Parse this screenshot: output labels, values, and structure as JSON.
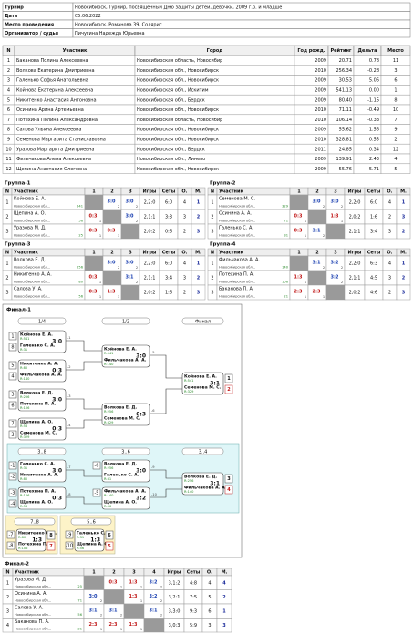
{
  "header": {
    "rows": [
      [
        "Турнир",
        "Новосибирск, Турнир, посвященный Дню защиты детей, девочки, 2009 г.р. и младше"
      ],
      [
        "Дата",
        "05.06.2022"
      ],
      [
        "Место проведения",
        "Новосибирск, Романова 39, Солярис"
      ],
      [
        "Организатор / судья",
        "Пичугина Надежда Юрьевна"
      ]
    ]
  },
  "players": {
    "columns": [
      "N",
      "Участник",
      "Город",
      "Год рожд.",
      "Рейтинг",
      "Дельта",
      "Место"
    ],
    "rows": [
      [
        "1",
        "Баканова Полина Алексеевна",
        "Новосибирская область, Новосибир",
        "2009",
        "20.71",
        "0.78",
        "11"
      ],
      [
        "2",
        "Волкова Екатерина Дмитриевна",
        "Новосибирская обл., Новосибирск",
        "2010",
        "256.34",
        "-0.28",
        "3"
      ],
      [
        "3",
        "Галенько Софья Анатольевна",
        "Новосибирская обл., Новосибирск",
        "2009",
        "30.53",
        "5.06",
        "6"
      ],
      [
        "4",
        "Койнова Екатерина Алексеевна",
        "Новосибирская обл., Искитим",
        "2009",
        "541.13",
        "0.00",
        "1"
      ],
      [
        "5",
        "Никитенко Анастасия Антоновна",
        "Новосибирская обл., Бердск",
        "2009",
        "80.40",
        "-1.15",
        "8"
      ],
      [
        "6",
        "Осинина Арина Артемьевна",
        "Новосибирская обл., Новосибирск",
        "2010",
        "71.11",
        "-0.49",
        "10"
      ],
      [
        "7",
        "Потехина Полина Александровна",
        "Новосибирская область, Новосибир",
        "2010",
        "106.14",
        "-0.33",
        "7"
      ],
      [
        "8",
        "Салова Ульяна Алексеевна",
        "Новосибирская обл., Новосибирск",
        "2009",
        "55.62",
        "1.56",
        "9"
      ],
      [
        "9",
        "Семенова Маргарита Станиславовна",
        "Новосибирская обл., Новосибирск",
        "2010",
        "328.81",
        "0.55",
        "2"
      ],
      [
        "10",
        "Уразова Маргарита Дмитриевна",
        "Новосибирская обл., Бердск",
        "2011",
        "24.85",
        "0.34",
        "12"
      ],
      [
        "11",
        "Фильчакова Алена Алексеевна",
        "Новосибирская обл., Линево",
        "2009",
        "139.91",
        "2.43",
        "4"
      ],
      [
        "12",
        "Щепина Анастасия Олеговна",
        "Новосибирская обл., Новосибирск",
        "2009",
        "55.76",
        "5.71",
        "5"
      ]
    ]
  },
  "groups": [
    {
      "title": "Группа-1",
      "columns": [
        "N",
        "Участник",
        "1",
        "2",
        "3",
        "Игры",
        "Сеты",
        "О.",
        "М."
      ],
      "rows": [
        {
          "n": "1",
          "name": "Койнова Е. А.",
          "city": "Новосибирская обл...",
          "rating": "541",
          "cells": [
            null,
            {
              "score": "3:0",
              "pts": "2"
            },
            {
              "score": "3:0",
              "pts": "2"
            }
          ],
          "games": "2,2:0",
          "sets": "6:0",
          "points": "4",
          "place": "1"
        },
        {
          "n": "2",
          "name": "Щепина А. О.",
          "city": "Новосибирская обл...",
          "rating": "56",
          "cells": [
            {
              "score": "0:3",
              "pts": "1"
            },
            null,
            {
              "score": "3:0",
              "pts": "2"
            }
          ],
          "games": "2,1:1",
          "sets": "3:3",
          "points": "3",
          "place": "2"
        },
        {
          "n": "3",
          "name": "Уразова М. Д.",
          "city": "Новосибирская обл...",
          "rating": "25",
          "cells": [
            {
              "score": "0:3",
              "pts": "1"
            },
            {
              "score": "0:3",
              "pts": "1"
            },
            null
          ],
          "games": "2,0:2",
          "sets": "0:6",
          "points": "2",
          "place": "3"
        }
      ]
    },
    {
      "title": "Группа-2",
      "columns": [
        "N",
        "Участник",
        "1",
        "2",
        "3",
        "Игры",
        "Сеты",
        "О.",
        "М."
      ],
      "rows": [
        {
          "n": "1",
          "name": "Семенова М. С.",
          "city": "Новосибирская обл...",
          "rating": "329",
          "cells": [
            null,
            {
              "score": "3:0",
              "pts": "2"
            },
            {
              "score": "3:0",
              "pts": "2"
            }
          ],
          "games": "2,2:0",
          "sets": "6:0",
          "points": "4",
          "place": "1"
        },
        {
          "n": "2",
          "name": "Осинина А. А.",
          "city": "Новосибирская обл...",
          "rating": "71",
          "cells": [
            {
              "score": "0:3",
              "pts": "1"
            },
            null,
            {
              "score": "1:3",
              "pts": "1"
            }
          ],
          "games": "2,0:2",
          "sets": "1:6",
          "points": "2",
          "place": "3"
        },
        {
          "n": "3",
          "name": "Галенько С. А.",
          "city": "Новосибирская обл...",
          "rating": "31",
          "cells": [
            {
              "score": "0:3",
              "pts": "1"
            },
            {
              "score": "3:1",
              "pts": "2"
            },
            null
          ],
          "games": "2,1:1",
          "sets": "3:4",
          "points": "3",
          "place": "2"
        }
      ]
    },
    {
      "title": "Группа-3",
      "columns": [
        "N",
        "Участник",
        "1",
        "2",
        "3",
        "Игры",
        "Сеты",
        "О.",
        "М."
      ],
      "rows": [
        {
          "n": "1",
          "name": "Волкова Е. Д.",
          "city": "Новосибирская обл...",
          "rating": "256",
          "cells": [
            null,
            {
              "score": "3:0",
              "pts": "2"
            },
            {
              "score": "3:0",
              "pts": "2"
            }
          ],
          "games": "2,2:0",
          "sets": "6:0",
          "points": "4",
          "place": "1"
        },
        {
          "n": "2",
          "name": "Никитенко А. А.",
          "city": "Новосибирская обл...",
          "rating": "80",
          "cells": [
            {
              "score": "0:3",
              "pts": "1"
            },
            null,
            {
              "score": "3:1",
              "pts": "2"
            }
          ],
          "games": "2,1:1",
          "sets": "3:4",
          "points": "3",
          "place": "2"
        },
        {
          "n": "3",
          "name": "Салова У. А.",
          "city": "Новосибирская обл...",
          "rating": "56",
          "cells": [
            {
              "score": "0:3",
              "pts": "1"
            },
            {
              "score": "1:3",
              "pts": "1"
            },
            null
          ],
          "games": "2,0:2",
          "sets": "1:6",
          "points": "2",
          "place": "3"
        }
      ]
    },
    {
      "title": "Группа-4",
      "columns": [
        "N",
        "Участник",
        "1",
        "2",
        "3",
        "Игры",
        "Сеты",
        "О.",
        "М."
      ],
      "rows": [
        {
          "n": "1",
          "name": "Фильчакова А. А.",
          "city": "Новосибирская обл...",
          "rating": "140",
          "cells": [
            null,
            {
              "score": "3:1",
              "pts": "2"
            },
            {
              "score": "3:2",
              "pts": "2"
            }
          ],
          "games": "2,2:0",
          "sets": "6:3",
          "points": "4",
          "place": "1"
        },
        {
          "n": "2",
          "name": "Потехина П. А.",
          "city": "Новосибирская обл...",
          "rating": "106",
          "cells": [
            {
              "score": "1:3",
              "pts": "1"
            },
            null,
            {
              "score": "3:2",
              "pts": "2"
            }
          ],
          "games": "2,1:1",
          "sets": "4:5",
          "points": "3",
          "place": "2"
        },
        {
          "n": "3",
          "name": "Баканова П. А.",
          "city": "Новосибирская обл...",
          "rating": "21",
          "cells": [
            {
              "score": "2:3",
              "pts": "1"
            },
            {
              "score": "2:3",
              "pts": "1"
            },
            null
          ],
          "games": "2,0:2",
          "sets": "4:6",
          "points": "2",
          "place": "3"
        }
      ]
    }
  ],
  "final1": {
    "title": "Финал-1",
    "rounds": [
      "1/4",
      "1/2",
      "Финал"
    ],
    "consolation": [
      "3..8",
      "3..6",
      "3..4"
    ],
    "lower": [
      "7..8",
      "5..6"
    ],
    "matches": [
      {
        "a": {
          "seed": "1",
          "name": "Койнова Е. А.",
          "rating": "R:541"
        },
        "b": {
          "seed": "8",
          "name": "Галенько С. А.",
          "rating": "R:31"
        },
        "score": "3:0",
        "num": "-1"
      },
      {
        "a": {
          "seed": "5",
          "name": "Никитенко А. А.",
          "rating": "R:80"
        },
        "b": {
          "seed": "4",
          "name": "Фильчакова А. А.",
          "rating": "R:140"
        },
        "score": "0:3",
        "num": "-2"
      },
      {
        "a": {
          "seed": "3",
          "name": "Волкова Е. Д.",
          "rating": "R:256"
        },
        "b": {
          "seed": "6",
          "name": "Потехина П. А.",
          "rating": "R:106"
        },
        "score": "3:0",
        "num": "-3"
      },
      {
        "a": {
          "seed": "7",
          "name": "Щепина А. О.",
          "rating": "R:56"
        },
        "b": {
          "seed": "2",
          "name": "Семенова М. С.",
          "rating": "R:329"
        },
        "score": "0:3",
        "num": "-4"
      },
      {
        "a": {
          "name": "Койнова Е. А.",
          "rating": "R:541"
        },
        "b": {
          "name": "Фильчакова А. А.",
          "rating": "R:140"
        },
        "score": "3:0",
        "num": "-5"
      },
      {
        "a": {
          "name": "Волкова Е. Д.",
          "rating": "R:256"
        },
        "b": {
          "name": "Семенова М. С.",
          "rating": "R:329"
        },
        "score": "0:3",
        "num": "-6"
      },
      {
        "a": {
          "name": "Койнова Е. А.",
          "rating": "R:541"
        },
        "b": {
          "name": "Семенова М. С.",
          "rating": "R:329"
        },
        "score": "3:1",
        "results": [
          "1",
          "2"
        ]
      },
      {
        "a": {
          "seed": "-1",
          "name": "Галенько С. А.",
          "rating": "R:31"
        },
        "b": {
          "seed": "-2",
          "name": "Никитенко А. А.",
          "rating": "R:80"
        },
        "score": "3:0",
        "num": "-7"
      },
      {
        "a": {
          "seed": "-3",
          "name": "Потехина П. А.",
          "rating": "R:106"
        },
        "b": {
          "seed": "-4",
          "name": "Щепина А. О.",
          "rating": "R:56"
        },
        "score": "0:3",
        "num": "-8"
      },
      {
        "a": {
          "seed": "-6",
          "name": "Волкова Е. Д.",
          "rating": "R:256"
        },
        "b": {
          "name": "Галенько С. А.",
          "rating": "R:31"
        },
        "score": "3:0",
        "num": "-9"
      },
      {
        "a": {
          "seed": "-5",
          "name": "Фильчакова А. А.",
          "rating": "R:140"
        },
        "b": {
          "name": "Щепина А. О.",
          "rating": "R:56"
        },
        "score": "3:2",
        "num": "-10"
      },
      {
        "a": {
          "name": "Волкова Е. Д.",
          "rating": "R:256"
        },
        "b": {
          "name": "Фильчакова А. А.",
          "rating": "R:140"
        },
        "score": "3:1",
        "results": [
          "3",
          "4"
        ]
      },
      {
        "a": {
          "seed": "-7",
          "name": "Никитенко А. А.",
          "rating": "R:80"
        },
        "b": {
          "seed": "-8",
          "name": "Потехина П. А.",
          "rating": "R:106"
        },
        "score": "1:3",
        "results": [
          "8",
          "7"
        ]
      },
      {
        "a": {
          "seed": "-9",
          "name": "Галенько С. А.",
          "rating": "R:31"
        },
        "b": {
          "seed": "-10",
          "name": "Щепина А. О.",
          "rating": "R:56"
        },
        "score": "1:3",
        "results": [
          "6",
          "5"
        ]
      }
    ]
  },
  "final2": {
    "title": "Финал-2",
    "columns": [
      "N",
      "Участник",
      "1",
      "2",
      "3",
      "4",
      "Игры",
      "Сеты",
      "О.",
      "М."
    ],
    "rows": [
      {
        "n": "1",
        "name": "Уразова М. Д.",
        "city": "Новосибирская обл...",
        "rating": "25",
        "cells": [
          null,
          {
            "score": "0:3",
            "pts": "1"
          },
          {
            "score": "1:3",
            "pts": "1"
          },
          {
            "score": "3:2",
            "pts": "2"
          }
        ],
        "games": "3,1:2",
        "sets": "4:8",
        "points": "4",
        "place": "4"
      },
      {
        "n": "2",
        "name": "Осинина А. А.",
        "city": "Новосибирская обл...",
        "rating": "71",
        "cells": [
          {
            "score": "3:0",
            "pts": "2"
          },
          null,
          {
            "score": "1:3",
            "pts": "1"
          },
          {
            "score": "3:2",
            "pts": "2"
          }
        ],
        "games": "3,2:1",
        "sets": "7:5",
        "points": "5",
        "place": "2"
      },
      {
        "n": "3",
        "name": "Салова У. А.",
        "city": "Новосибирская обл...",
        "rating": "56",
        "cells": [
          {
            "score": "3:1",
            "pts": "2"
          },
          {
            "score": "3:1",
            "pts": "2"
          },
          null,
          {
            "score": "3:1",
            "pts": "2"
          }
        ],
        "games": "3,3:0",
        "sets": "9:3",
        "points": "6",
        "place": "1"
      },
      {
        "n": "4",
        "name": "Баканова П. А.",
        "city": "Новосибирская обл...",
        "rating": "21",
        "cells": [
          {
            "score": "2:3",
            "pts": "1"
          },
          {
            "score": "2:3",
            "pts": "1"
          },
          {
            "score": "1:3",
            "pts": "1"
          },
          null
        ],
        "games": "3,0:3",
        "sets": "5:9",
        "points": "3",
        "place": "3"
      }
    ]
  }
}
